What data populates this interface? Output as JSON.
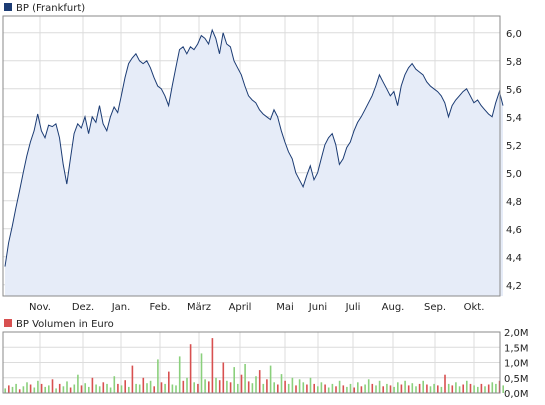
{
  "colors": {
    "price_line": "#1c3c74",
    "price_fill": "#e6ecf8",
    "grid": "#dcdcdc",
    "frame": "#8a8a8a",
    "legend_price": "#1c3c74",
    "volume_up": "#8ad07c",
    "volume_down": "#d85050"
  },
  "chart_data": [
    {
      "type": "area",
      "legend": "BP (Frankfurt)",
      "x_tick_labels": [
        "Nov.",
        "Dez.",
        "Jan.",
        "Feb.",
        "März",
        "April",
        "Mai",
        "Juni",
        "Juli",
        "Aug.",
        "Sep.",
        "Okt."
      ],
      "y_ticks": [
        4.2,
        4.4,
        4.6,
        4.8,
        5.0,
        5.2,
        5.4,
        5.6,
        5.8,
        6.0
      ],
      "y_tick_labels": [
        "4,2",
        "4,4",
        "4,6",
        "4,8",
        "5,0",
        "5,2",
        "5,4",
        "5,6",
        "5,8",
        "6,0"
      ],
      "ylim": [
        4.12,
        6.12
      ],
      "grid": true,
      "legend_position": "top-left",
      "series": [
        {
          "name": "BP (Frankfurt)",
          "values": [
            4.33,
            4.5,
            4.62,
            4.75,
            4.87,
            5.0,
            5.12,
            5.22,
            5.3,
            5.42,
            5.3,
            5.25,
            5.34,
            5.33,
            5.35,
            5.25,
            5.06,
            4.92,
            5.1,
            5.28,
            5.35,
            5.32,
            5.4,
            5.28,
            5.4,
            5.36,
            5.48,
            5.35,
            5.3,
            5.4,
            5.47,
            5.43,
            5.55,
            5.68,
            5.78,
            5.82,
            5.85,
            5.8,
            5.78,
            5.8,
            5.75,
            5.68,
            5.62,
            5.6,
            5.55,
            5.48,
            5.62,
            5.75,
            5.88,
            5.9,
            5.85,
            5.9,
            5.88,
            5.92,
            5.98,
            5.96,
            5.92,
            6.02,
            5.96,
            5.85,
            6.0,
            5.92,
            5.9,
            5.8,
            5.75,
            5.7,
            5.62,
            5.55,
            5.52,
            5.5,
            5.45,
            5.42,
            5.4,
            5.38,
            5.45,
            5.4,
            5.3,
            5.22,
            5.15,
            5.1,
            5.0,
            4.95,
            4.9,
            4.98,
            5.05,
            4.95,
            5.0,
            5.1,
            5.2,
            5.25,
            5.28,
            5.2,
            5.06,
            5.1,
            5.18,
            5.22,
            5.3,
            5.36,
            5.4,
            5.45,
            5.5,
            5.55,
            5.62,
            5.7,
            5.65,
            5.6,
            5.55,
            5.58,
            5.48,
            5.62,
            5.7,
            5.75,
            5.78,
            5.74,
            5.72,
            5.7,
            5.65,
            5.62,
            5.6,
            5.58,
            5.55,
            5.5,
            5.4,
            5.48,
            5.52,
            5.55,
            5.58,
            5.6,
            5.55,
            5.5,
            5.52,
            5.48,
            5.45,
            5.42,
            5.4,
            5.5,
            5.58,
            5.48
          ]
        }
      ]
    },
    {
      "type": "bar",
      "legend": "BP Volumen in Euro",
      "y_ticks": [
        0,
        0.5,
        1.0,
        1.5,
        2.0
      ],
      "y_tick_labels": [
        "0,0M",
        "0,5M",
        "1,0M",
        "1,5M",
        "2,0M"
      ],
      "ylim": [
        0,
        2.0
      ],
      "grid": true,
      "legend_position": "top-left",
      "series": [
        {
          "name": "BP Volumen in Euro",
          "unit": "M",
          "values": [
            0.15,
            0.25,
            0.2,
            0.3,
            0.12,
            0.22,
            0.35,
            0.28,
            0.18,
            0.4,
            0.3,
            0.2,
            0.25,
            0.45,
            0.15,
            0.3,
            0.22,
            0.38,
            0.18,
            0.28,
            0.6,
            0.25,
            0.32,
            0.2,
            0.5,
            0.28,
            0.22,
            0.35,
            0.3,
            0.18,
            0.55,
            0.3,
            0.25,
            0.42,
            0.2,
            0.9,
            0.3,
            0.28,
            0.5,
            0.32,
            0.4,
            0.22,
            1.1,
            0.35,
            0.3,
            0.7,
            0.28,
            0.25,
            1.2,
            0.4,
            0.5,
            1.6,
            0.35,
            0.3,
            1.3,
            0.45,
            0.38,
            1.8,
            0.5,
            0.42,
            1.0,
            0.4,
            0.35,
            0.85,
            0.3,
            0.6,
            0.95,
            0.38,
            0.32,
            0.55,
            0.75,
            0.3,
            0.45,
            0.9,
            0.35,
            0.28,
            0.62,
            0.4,
            0.3,
            0.5,
            0.25,
            0.45,
            0.35,
            0.28,
            0.5,
            0.3,
            0.22,
            0.35,
            0.28,
            0.18,
            0.3,
            0.22,
            0.4,
            0.25,
            0.2,
            0.3,
            0.18,
            0.35,
            0.22,
            0.28,
            0.45,
            0.3,
            0.25,
            0.4,
            0.22,
            0.3,
            0.25,
            0.2,
            0.35,
            0.28,
            0.4,
            0.25,
            0.32,
            0.22,
            0.3,
            0.4,
            0.28,
            0.22,
            0.3,
            0.25,
            0.2,
            0.6,
            0.3,
            0.25,
            0.35,
            0.22,
            0.28,
            0.4,
            0.3,
            0.25,
            0.2,
            0.3,
            0.22,
            0.28,
            0.35,
            0.3,
            0.4,
            0.25
          ],
          "direction": [
            1,
            0,
            1,
            1,
            0,
            1,
            1,
            0,
            1,
            1,
            0,
            1,
            1,
            0,
            1,
            0,
            1,
            1,
            0,
            1,
            1,
            0,
            1,
            1,
            0,
            1,
            1,
            0,
            1,
            1,
            1,
            0,
            1,
            0,
            1,
            0,
            1,
            1,
            0,
            1,
            1,
            0,
            1,
            0,
            1,
            0,
            1,
            1,
            1,
            0,
            1,
            0,
            1,
            0,
            1,
            1,
            0,
            0,
            1,
            0,
            0,
            1,
            0,
            1,
            1,
            0,
            1,
            0,
            1,
            1,
            0,
            1,
            0,
            1,
            1,
            0,
            1,
            0,
            1,
            1,
            0,
            1,
            1,
            0,
            1,
            0,
            1,
            1,
            0,
            1,
            1,
            0,
            1,
            0,
            1,
            1,
            0,
            1,
            0,
            1,
            1,
            0,
            1,
            1,
            0,
            1,
            0,
            1,
            1,
            0,
            1,
            0,
            1,
            1,
            0,
            1,
            0,
            1,
            1,
            0,
            1,
            0,
            1,
            0,
            1,
            1,
            0,
            1,
            0,
            1,
            1,
            0,
            1,
            0,
            1,
            1,
            0,
            1
          ]
        }
      ]
    }
  ]
}
